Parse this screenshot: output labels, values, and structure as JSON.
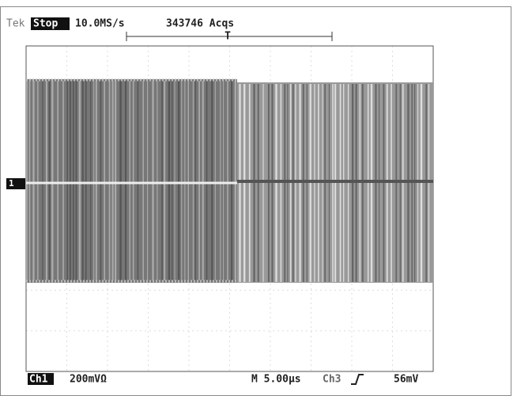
{
  "header": {
    "brand": "Tek",
    "status": "Stop",
    "sample_rate": "10.0MS/s",
    "acquisitions": "343746 Acqs",
    "trigger_marker": "T"
  },
  "channel_marker": "1",
  "footer": {
    "channel": "Ch1",
    "scale": "200mVΩ",
    "timebase": "M 5.00µs",
    "trigger_source": "Ch3",
    "trigger_level": "56mV"
  }
}
